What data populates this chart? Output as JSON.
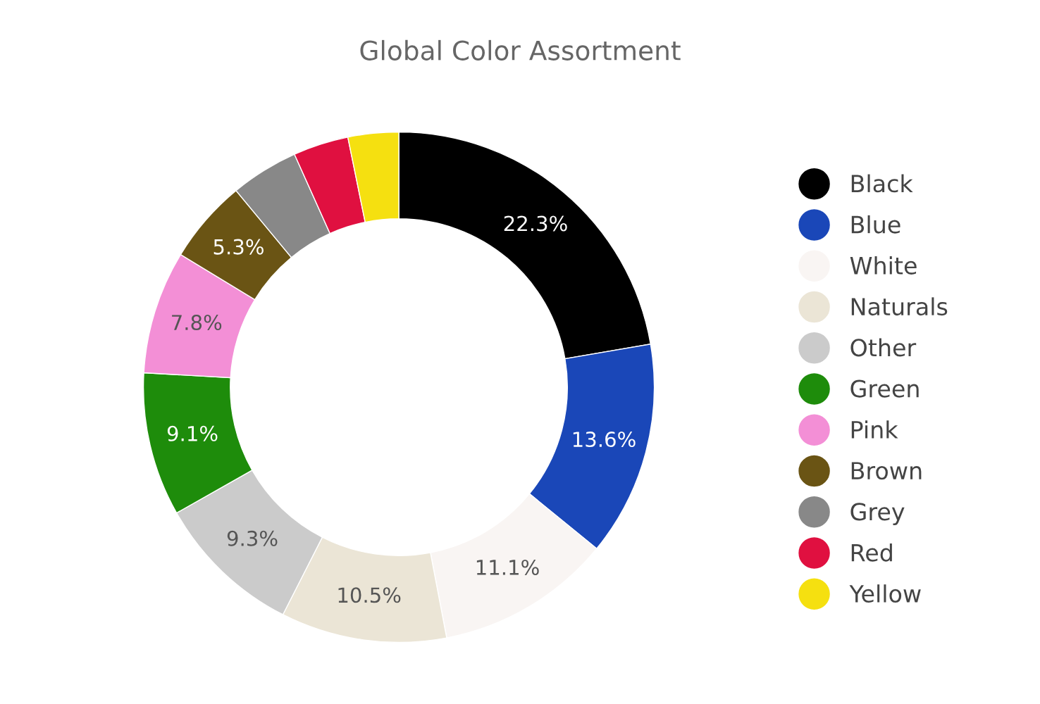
{
  "chart_data": {
    "type": "donut",
    "title": "Global Color Assortment",
    "categories": [
      "Black",
      "Blue",
      "White",
      "Naturals",
      "Other",
      "Green",
      "Pink",
      "Brown",
      "Grey",
      "Red",
      "Yellow"
    ],
    "values": [
      22.3,
      13.6,
      11.1,
      10.5,
      9.3,
      9.1,
      7.8,
      5.3,
      4.3,
      3.5,
      3.2
    ],
    "colors": [
      "#000000",
      "#1a47b8",
      "#f9f5f3",
      "#ebe5d6",
      "#cbcbcb",
      "#1e8c0b",
      "#f38fd6",
      "#6a5414",
      "#888888",
      "#e01040",
      "#f5e010"
    ],
    "value_labels": [
      "22.3%",
      "13.6%",
      "11.1%",
      "10.5%",
      "9.3%",
      "9.1%",
      "7.8%",
      "5.3%",
      null,
      null,
      null
    ],
    "legend": "right"
  }
}
